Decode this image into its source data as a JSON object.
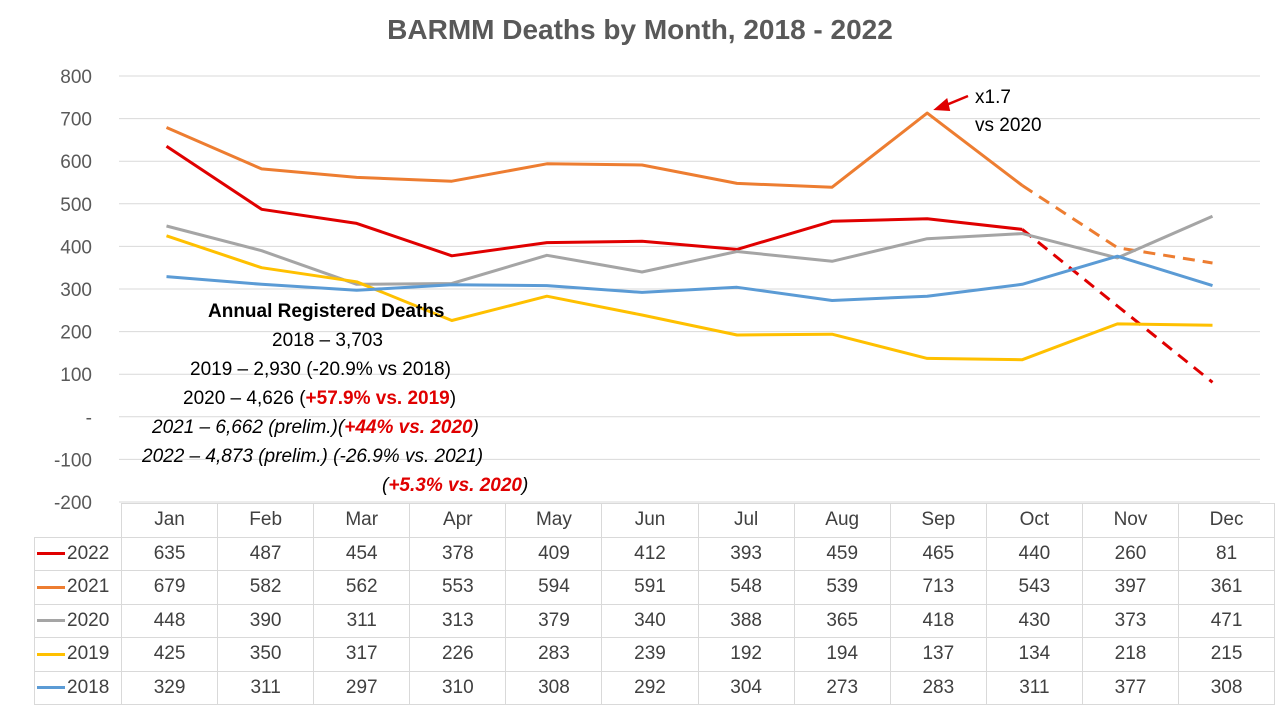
{
  "chart_data": {
    "type": "line",
    "title": "BARMM Deaths by Month, 2018 - 2022",
    "categories": [
      "Jan",
      "Feb",
      "Mar",
      "Apr",
      "May",
      "Jun",
      "Jul",
      "Aug",
      "Sep",
      "Oct",
      "Nov",
      "Dec"
    ],
    "ylim": [
      -200,
      800
    ],
    "yticks": [
      "800",
      "700",
      "600",
      "500",
      "400",
      "300",
      "200",
      "100",
      "-",
      "-100",
      "-200"
    ],
    "grid": true,
    "legend": "data-table",
    "series": [
      {
        "name": "2022",
        "color": "#e00000",
        "dashed_from": "Oct",
        "values": [
          635,
          487,
          454,
          378,
          409,
          412,
          393,
          459,
          465,
          440,
          260,
          81
        ]
      },
      {
        "name": "2021",
        "color": "#ed7d31",
        "dashed_from": "Oct",
        "values": [
          679,
          582,
          562,
          553,
          594,
          591,
          548,
          539,
          713,
          543,
          397,
          361
        ]
      },
      {
        "name": "2020",
        "color": "#a5a5a5",
        "values": [
          448,
          390,
          311,
          313,
          379,
          340,
          388,
          365,
          418,
          430,
          373,
          471
        ]
      },
      {
        "name": "2019",
        "color": "#ffc000",
        "values": [
          425,
          350,
          317,
          226,
          283,
          239,
          192,
          194,
          137,
          134,
          218,
          215
        ]
      },
      {
        "name": "2018",
        "color": "#5b9bd5",
        "values": [
          329,
          311,
          297,
          310,
          308,
          292,
          304,
          273,
          283,
          311,
          377,
          308
        ]
      }
    ],
    "callout": {
      "line1": "x1.7",
      "line2": "vs 2020"
    },
    "annotation": {
      "heading": "Annual Registered Deaths",
      "l2018": "2018 – 3,703",
      "l2019": "2019 – 2,930 (-20.9% vs 2018)",
      "l2020_a": "2020 – 4,626 (",
      "l2020_b": "+57.9% vs. 2019",
      "l2020_c": ")",
      "l2021_a": "2021 – 6,662 (prelim.)(",
      "l2021_b": "+44% vs. 2020",
      "l2021_c": ")",
      "l2022": "2022 – 4,873 (prelim.) (-26.9% vs. 2021)",
      "l2022b_a": "(",
      "l2022b_b": "+5.3% vs. 2020",
      "l2022b_c": ")"
    }
  }
}
